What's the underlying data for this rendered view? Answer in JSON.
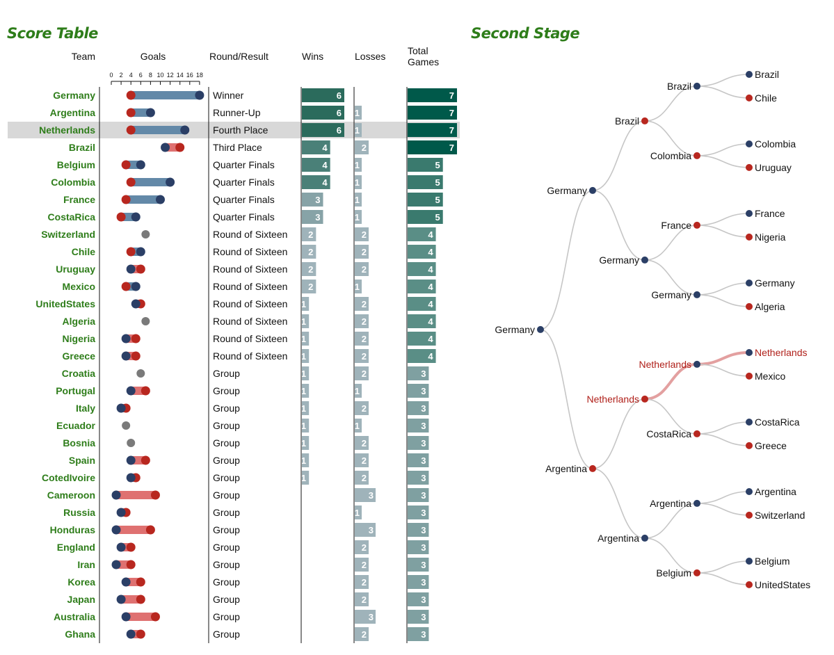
{
  "score_table": {
    "title": "Score Table",
    "headers": {
      "team": "Team",
      "goals": "Goals",
      "round": "Round/Result",
      "wins": "Wins",
      "losses": "Losses",
      "total_1": "Total",
      "total_2": "Games"
    },
    "goal_ticks": [
      "0",
      "2",
      "4",
      "6",
      "8",
      "10",
      "12",
      "14",
      "16",
      "18"
    ],
    "highlight_team": "Netherlands"
  },
  "second_stage": {
    "title": "Second Stage",
    "highlight_team": "Netherlands"
  },
  "colors": {
    "team_text": "#2e7d1a",
    "goals_for": "#2b3f66",
    "goals_against": "#b8271f",
    "range_for": "#6389a8",
    "range_against": "#df7171",
    "equal": "#7a7a7a",
    "highlight_row": "#d8d8d8",
    "bar_light": "#9fb3ba",
    "tree_path": "#c6c6c6",
    "tree_highlight": "#e3a0a0",
    "tree_highlight_text": "#b0201a"
  },
  "chart_data": [
    {
      "type": "table",
      "title": "Score Table",
      "columns": [
        "Team",
        "Goals For",
        "Goals Against",
        "Round/Result",
        "Wins",
        "Losses",
        "Total Games"
      ],
      "rows": [
        {
          "team": "Germany",
          "goals_for": 18,
          "goals_against": 4,
          "round": "Winner",
          "wins": 6,
          "losses": 0,
          "total": 7
        },
        {
          "team": "Argentina",
          "goals_for": 8,
          "goals_against": 4,
          "round": "Runner-Up",
          "wins": 6,
          "losses": 1,
          "total": 7
        },
        {
          "team": "Netherlands",
          "goals_for": 15,
          "goals_against": 4,
          "round": "Fourth Place",
          "wins": 6,
          "losses": 1,
          "total": 7
        },
        {
          "team": "Brazil",
          "goals_for": 11,
          "goals_against": 14,
          "round": "Third Place",
          "wins": 4,
          "losses": 2,
          "total": 7
        },
        {
          "team": "Belgium",
          "goals_for": 6,
          "goals_against": 3,
          "round": "Quarter Finals",
          "wins": 4,
          "losses": 1,
          "total": 5
        },
        {
          "team": "Colombia",
          "goals_for": 12,
          "goals_against": 4,
          "round": "Quarter Finals",
          "wins": 4,
          "losses": 1,
          "total": 5
        },
        {
          "team": "France",
          "goals_for": 10,
          "goals_against": 3,
          "round": "Quarter Finals",
          "wins": 3,
          "losses": 1,
          "total": 5
        },
        {
          "team": "CostaRica",
          "goals_for": 5,
          "goals_against": 2,
          "round": "Quarter Finals",
          "wins": 3,
          "losses": 1,
          "total": 5
        },
        {
          "team": "Switzerland",
          "goals_for": 7,
          "goals_against": 7,
          "round": "Round of Sixteen",
          "wins": 2,
          "losses": 2,
          "total": 4
        },
        {
          "team": "Chile",
          "goals_for": 6,
          "goals_against": 4,
          "round": "Round of Sixteen",
          "wins": 2,
          "losses": 2,
          "total": 4
        },
        {
          "team": "Uruguay",
          "goals_for": 4,
          "goals_against": 6,
          "round": "Round of Sixteen",
          "wins": 2,
          "losses": 2,
          "total": 4
        },
        {
          "team": "Mexico",
          "goals_for": 5,
          "goals_against": 3,
          "round": "Round of Sixteen",
          "wins": 2,
          "losses": 1,
          "total": 4
        },
        {
          "team": "UnitedStates",
          "goals_for": 5,
          "goals_against": 6,
          "round": "Round of Sixteen",
          "wins": 1,
          "losses": 2,
          "total": 4
        },
        {
          "team": "Algeria",
          "goals_for": 7,
          "goals_against": 7,
          "round": "Round of Sixteen",
          "wins": 1,
          "losses": 2,
          "total": 4
        },
        {
          "team": "Nigeria",
          "goals_for": 3,
          "goals_against": 5,
          "round": "Round of Sixteen",
          "wins": 1,
          "losses": 2,
          "total": 4
        },
        {
          "team": "Greece",
          "goals_for": 3,
          "goals_against": 5,
          "round": "Round of Sixteen",
          "wins": 1,
          "losses": 2,
          "total": 4
        },
        {
          "team": "Croatia",
          "goals_for": 6,
          "goals_against": 6,
          "round": "Group",
          "wins": 1,
          "losses": 2,
          "total": 3
        },
        {
          "team": "Portugal",
          "goals_for": 4,
          "goals_against": 7,
          "round": "Group",
          "wins": 1,
          "losses": 1,
          "total": 3
        },
        {
          "team": "Italy",
          "goals_for": 2,
          "goals_against": 3,
          "round": "Group",
          "wins": 1,
          "losses": 2,
          "total": 3
        },
        {
          "team": "Ecuador",
          "goals_for": 3,
          "goals_against": 3,
          "round": "Group",
          "wins": 1,
          "losses": 1,
          "total": 3
        },
        {
          "team": "Bosnia",
          "goals_for": 4,
          "goals_against": 4,
          "round": "Group",
          "wins": 1,
          "losses": 2,
          "total": 3
        },
        {
          "team": "Spain",
          "goals_for": 4,
          "goals_against": 7,
          "round": "Group",
          "wins": 1,
          "losses": 2,
          "total": 3
        },
        {
          "team": "CotedIvoire",
          "goals_for": 4,
          "goals_against": 5,
          "round": "Group",
          "wins": 1,
          "losses": 2,
          "total": 3
        },
        {
          "team": "Cameroon",
          "goals_for": 1,
          "goals_against": 9,
          "round": "Group",
          "wins": 0,
          "losses": 3,
          "total": 3
        },
        {
          "team": "Russia",
          "goals_for": 2,
          "goals_against": 3,
          "round": "Group",
          "wins": 0,
          "losses": 1,
          "total": 3
        },
        {
          "team": "Honduras",
          "goals_for": 1,
          "goals_against": 8,
          "round": "Group",
          "wins": 0,
          "losses": 3,
          "total": 3
        },
        {
          "team": "England",
          "goals_for": 2,
          "goals_against": 4,
          "round": "Group",
          "wins": 0,
          "losses": 2,
          "total": 3
        },
        {
          "team": "Iran",
          "goals_for": 1,
          "goals_against": 4,
          "round": "Group",
          "wins": 0,
          "losses": 2,
          "total": 3
        },
        {
          "team": "Korea",
          "goals_for": 3,
          "goals_against": 6,
          "round": "Group",
          "wins": 0,
          "losses": 2,
          "total": 3
        },
        {
          "team": "Japan",
          "goals_for": 2,
          "goals_against": 6,
          "round": "Group",
          "wins": 0,
          "losses": 2,
          "total": 3
        },
        {
          "team": "Australia",
          "goals_for": 3,
          "goals_against": 9,
          "round": "Group",
          "wins": 0,
          "losses": 3,
          "total": 3
        },
        {
          "team": "Ghana",
          "goals_for": 4,
          "goals_against": 6,
          "round": "Group",
          "wins": 0,
          "losses": 2,
          "total": 3
        }
      ]
    },
    {
      "type": "tree",
      "title": "Second Stage",
      "root": {
        "name": "Germany",
        "won": true,
        "children": [
          {
            "name": "Germany",
            "won": true,
            "children": [
              {
                "name": "Brazil",
                "won": false,
                "children": [
                  {
                    "name": "Brazil",
                    "won": true,
                    "children": [
                      {
                        "name": "Brazil",
                        "won": true
                      },
                      {
                        "name": "Chile",
                        "won": false
                      }
                    ]
                  },
                  {
                    "name": "Colombia",
                    "won": false,
                    "children": [
                      {
                        "name": "Colombia",
                        "won": true
                      },
                      {
                        "name": "Uruguay",
                        "won": false
                      }
                    ]
                  }
                ]
              },
              {
                "name": "Germany",
                "won": true,
                "children": [
                  {
                    "name": "France",
                    "won": false,
                    "children": [
                      {
                        "name": "France",
                        "won": true
                      },
                      {
                        "name": "Nigeria",
                        "won": false
                      }
                    ]
                  },
                  {
                    "name": "Germany",
                    "won": true,
                    "children": [
                      {
                        "name": "Germany",
                        "won": true
                      },
                      {
                        "name": "Algeria",
                        "won": false
                      }
                    ]
                  }
                ]
              }
            ]
          },
          {
            "name": "Argentina",
            "won": false,
            "children": [
              {
                "name": "Netherlands",
                "won": false,
                "children": [
                  {
                    "name": "Netherlands",
                    "won": true,
                    "children": [
                      {
                        "name": "Netherlands",
                        "won": true
                      },
                      {
                        "name": "Mexico",
                        "won": false
                      }
                    ]
                  },
                  {
                    "name": "CostaRica",
                    "won": false,
                    "children": [
                      {
                        "name": "CostaRica",
                        "won": true
                      },
                      {
                        "name": "Greece",
                        "won": false
                      }
                    ]
                  }
                ]
              },
              {
                "name": "Argentina",
                "won": true,
                "children": [
                  {
                    "name": "Argentina",
                    "won": true,
                    "children": [
                      {
                        "name": "Argentina",
                        "won": true
                      },
                      {
                        "name": "Switzerland",
                        "won": false
                      }
                    ]
                  },
                  {
                    "name": "Belgium",
                    "won": false,
                    "children": [
                      {
                        "name": "Belgium",
                        "won": true
                      },
                      {
                        "name": "UnitedStates",
                        "won": false
                      }
                    ]
                  }
                ]
              }
            ]
          }
        ]
      }
    }
  ]
}
